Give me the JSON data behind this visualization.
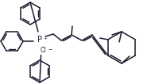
{
  "bg_color": "#ffffff",
  "line_color": "#1a1a2e",
  "line_width": 1.1,
  "figsize": [
    1.9,
    1.06
  ],
  "dpi": 100
}
